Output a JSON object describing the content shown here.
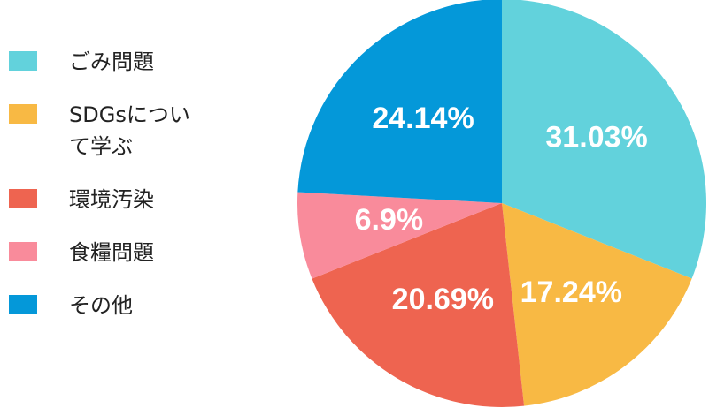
{
  "chart_data": {
    "type": "pie",
    "categories": [
      "ごみ問題",
      "SDGsについて学ぶ",
      "環境汚染",
      "食糧問題",
      "その他"
    ],
    "values": [
      31.03,
      17.24,
      20.69,
      6.9,
      24.14
    ],
    "value_labels": [
      "31.03%",
      "17.24%",
      "20.69%",
      "6.9%",
      "24.14%"
    ],
    "colors": [
      "#62d2dc",
      "#f8b944",
      "#ee6450",
      "#f98b9b",
      "#0498d9"
    ]
  }
}
